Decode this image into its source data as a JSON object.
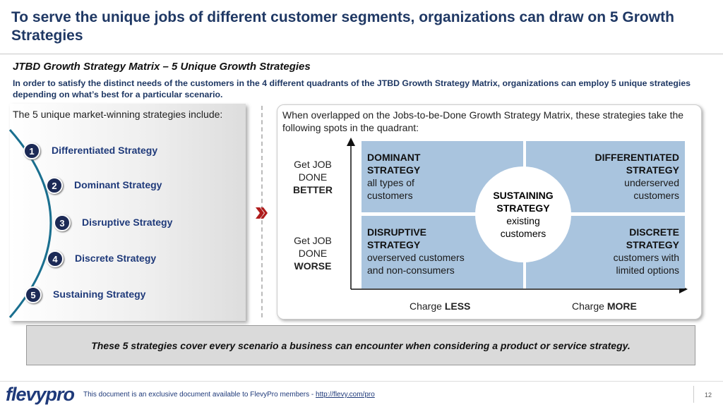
{
  "header": {
    "title": "To serve the unique jobs of different customer segments, organizations can draw on 5 Growth Strategies"
  },
  "subtitle": "JTBD Growth Strategy Matrix – 5 Unique Growth Strategies",
  "intro": "In order to satisfy the distinct needs of the customers in the 4 different quadrants of the JTBD Growth Strategy Matrix, organizations can employ 5 unique strategies depending on what’s best for a particular scenario.",
  "left": {
    "heading": "The 5 unique market-winning strategies include:",
    "items": [
      {
        "number": "1",
        "label": "Differentiated Strategy"
      },
      {
        "number": "2",
        "label": "Dominant Strategy"
      },
      {
        "number": "3",
        "label": "Disruptive Strategy"
      },
      {
        "number": "4",
        "label": "Discrete Strategy"
      },
      {
        "number": "5",
        "label": "Sustaining Strategy"
      }
    ]
  },
  "right": {
    "heading": "When overlapped on the Jobs-to-be-Done Growth Strategy Matrix, these strategies take the following spots in the quadrant:",
    "y_labels": [
      {
        "text": "Get JOB DONE",
        "emphasis": "BETTER"
      },
      {
        "text": "Get JOB DONE",
        "emphasis": "WORSE"
      }
    ],
    "x_labels": [
      {
        "text": "Charge",
        "emphasis": "LESS"
      },
      {
        "text": "Charge",
        "emphasis": "MORE"
      }
    ],
    "quadrants": [
      {
        "title": "DOMINANT STRATEGY",
        "description": "all types of customers"
      },
      {
        "title": "DIFFERENTIATED STRATEGY",
        "description": "underserved customers"
      },
      {
        "title": "DISRUPTIVE STRATEGY",
        "description": "overserved customers and non-consumers"
      },
      {
        "title": "DISCRETE STRATEGY",
        "description": "customers with limited options"
      }
    ],
    "center": {
      "title": "SUSTAINING STRATEGY",
      "description": "existing customers"
    }
  },
  "conclusion": "These 5 strategies cover every scenario a business can encounter when considering a product or service strategy.",
  "footer": {
    "logo": "flevypro",
    "text": "This document is an exclusive document available to FlevyPro members - ",
    "link": "http://flevy.com/pro",
    "page": "12"
  }
}
